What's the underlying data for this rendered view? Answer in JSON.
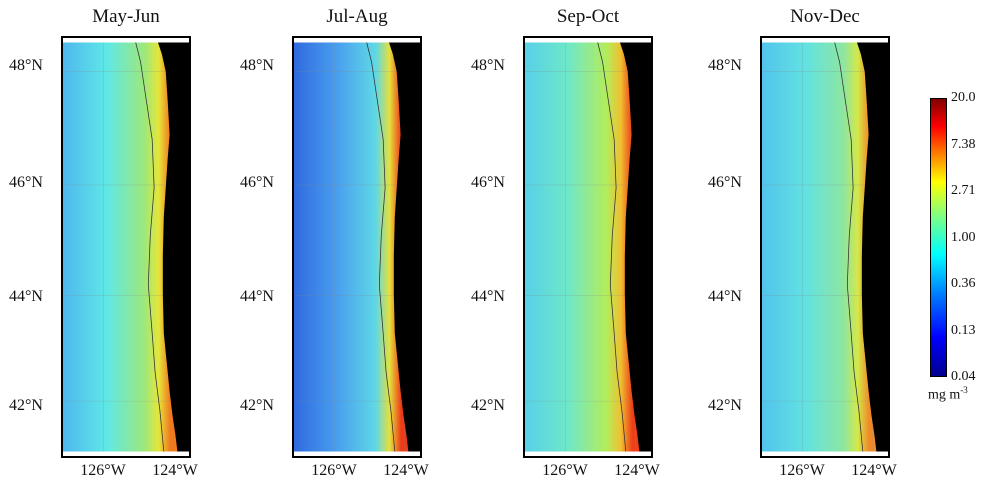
{
  "panels": [
    {
      "title": "May-Jun",
      "colors": [
        "#4fb8ef",
        "#5fe8e6",
        "#9ee87a",
        "#e6e63a",
        "#f07a20"
      ]
    },
    {
      "title": "Jul-Aug",
      "colors": [
        "#2f6ae0",
        "#4aa0ee",
        "#5fd8e6",
        "#e6e03a",
        "#ee3a18"
      ]
    },
    {
      "title": "Sep-Oct",
      "colors": [
        "#58d0e8",
        "#6fe8c8",
        "#b4ec5a",
        "#f0c030",
        "#ee4018"
      ]
    },
    {
      "title": "Nov-Dec",
      "colors": [
        "#52c4ec",
        "#62e2e2",
        "#8ee6a0",
        "#d4e848",
        "#f08a28"
      ]
    }
  ],
  "lat_ticks": [
    "48°N",
    "46°N",
    "44°N",
    "42°N"
  ],
  "lon_ticks": [
    "126°W",
    "124°W"
  ],
  "colorbar": {
    "ticks": [
      "20.0",
      "7.38",
      "2.71",
      "1.00",
      "0.36",
      "0.13",
      "0.04"
    ],
    "unit": "mg m",
    "unit_sup": "-3",
    "scale": "log",
    "range": [
      0.04,
      20.0
    ]
  },
  "land_color": "#000000"
}
